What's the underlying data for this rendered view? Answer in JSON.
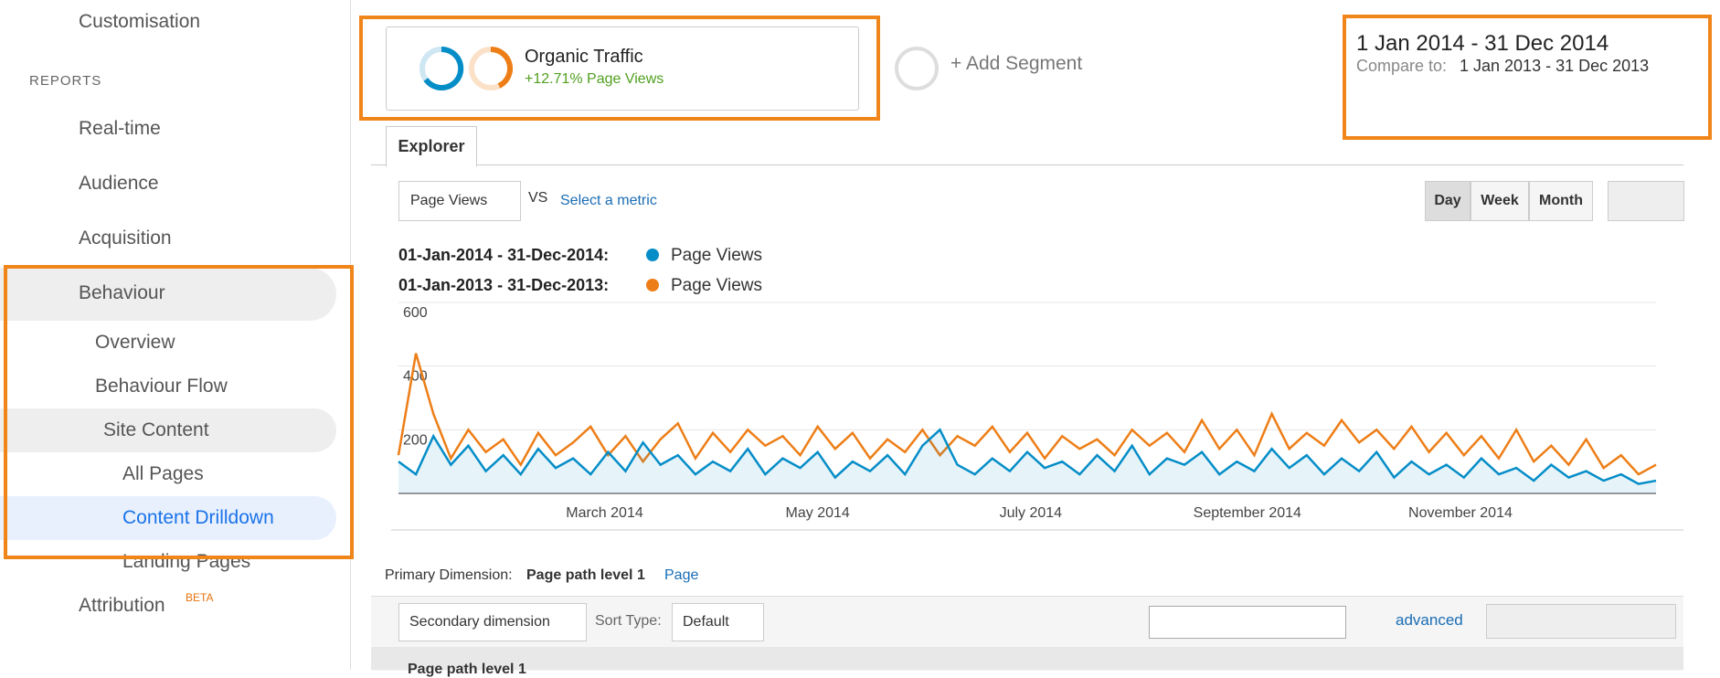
{
  "sidebar": {
    "items": [
      "Customisation",
      "REPORTS",
      "Real-time",
      "Audience",
      "Acquisition",
      "Behaviour",
      "Overview",
      "Behaviour Flow",
      "Site Content",
      "All Pages",
      "Content Drilldown",
      "Landing Pages",
      "Attribution"
    ],
    "beta": "BETA"
  },
  "segments": {
    "name": "Organic Traffic",
    "stat": "+12.71% Page Views",
    "add": "+ Add Segment"
  },
  "date": {
    "range": "1 Jan 2014 - 31 Dec 2014",
    "compare_label": "Compare to:",
    "compare": "1 Jan 2013 - 31 Dec 2013"
  },
  "explorer": {
    "tab": "Explorer",
    "metric": "Page Views",
    "vs": "VS",
    "select": "Select a metric",
    "periods": [
      "Day",
      "Week",
      "Month"
    ]
  },
  "chart_data": {
    "type": "line",
    "xlim": [
      0,
      72
    ],
    "xticks": [
      {
        "value": 11.8,
        "label": "March 2014"
      },
      {
        "value": 24,
        "label": "May 2014"
      },
      {
        "value": 36.2,
        "label": "July 2014"
      },
      {
        "value": 48.6,
        "label": "September 2014"
      },
      {
        "value": 60.8,
        "label": "November 2014"
      }
    ],
    "ylim": [
      0,
      600
    ],
    "yticks": [
      200,
      400,
      600
    ],
    "grid": true,
    "series": [
      {
        "name": "Page Views",
        "range_label": "01-Jan-2014 - 31-Dec-2014:",
        "color": "#058dc7",
        "values": [
          100,
          60,
          180,
          90,
          150,
          70,
          120,
          60,
          140,
          80,
          110,
          60,
          130,
          70,
          160,
          90,
          120,
          60,
          100,
          70,
          140,
          60,
          110,
          80,
          130,
          50,
          100,
          70,
          120,
          60,
          150,
          200,
          90,
          60,
          110,
          70,
          130,
          80,
          100,
          60,
          120,
          70,
          150,
          60,
          110,
          90,
          130,
          60,
          100,
          70,
          140,
          80,
          120,
          60,
          110,
          70,
          130,
          50,
          100,
          60,
          90,
          50,
          110,
          60,
          80,
          40,
          90,
          50,
          70,
          40,
          60,
          30,
          40
        ]
      },
      {
        "name": "Page Views",
        "range_label": "01-Jan-2013 - 31-Dec-2013:",
        "color": "#ed7e17",
        "values": [
          120,
          440,
          250,
          110,
          200,
          130,
          170,
          90,
          190,
          120,
          160,
          210,
          120,
          180,
          100,
          170,
          220,
          110,
          190,
          130,
          200,
          150,
          180,
          120,
          210,
          140,
          190,
          110,
          170,
          130,
          200,
          120,
          180,
          150,
          210,
          130,
          190,
          110,
          180,
          140,
          170,
          120,
          200,
          150,
          190,
          130,
          230,
          140,
          200,
          120,
          250,
          140,
          190,
          150,
          230,
          160,
          200,
          140,
          210,
          130,
          190,
          120,
          180,
          110,
          200,
          100,
          150,
          90,
          170,
          80,
          120,
          60,
          90
        ]
      }
    ]
  },
  "dimension": {
    "label": "Primary Dimension:",
    "active": "Page path level 1",
    "other": "Page",
    "secondary": "Secondary dimension",
    "sort_label": "Sort Type:",
    "sort": "Default",
    "advanced": "advanced",
    "column": "Page path level 1"
  }
}
